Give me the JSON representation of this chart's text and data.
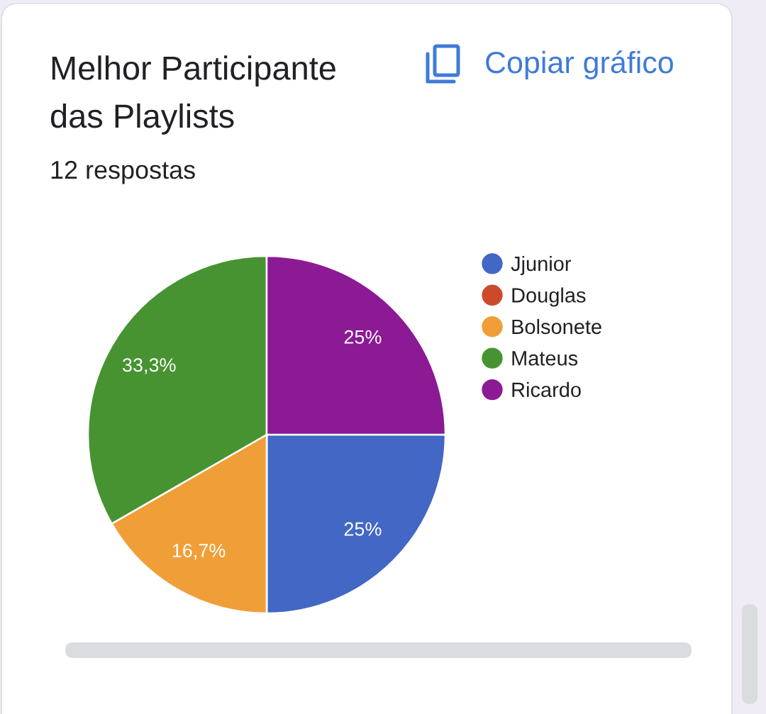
{
  "chart_data": {
    "type": "pie",
    "title": "Melhor Participante\ndas Playlists",
    "subtitle": "12 respostas",
    "annotations": [
      "Copiar gráfico"
    ],
    "categories": [
      "Jjunior",
      "Douglas",
      "Bolsonete",
      "Mateus",
      "Ricardo"
    ],
    "values": [
      25,
      0,
      16.7,
      33.3,
      25
    ],
    "value_labels": [
      "25%",
      null,
      "16,7%",
      "33,3%",
      "25%"
    ],
    "colors": [
      "#4267c4",
      "#cc4a2b",
      "#f09f38",
      "#479332",
      "#8b1a94"
    ],
    "legend": "top right"
  }
}
